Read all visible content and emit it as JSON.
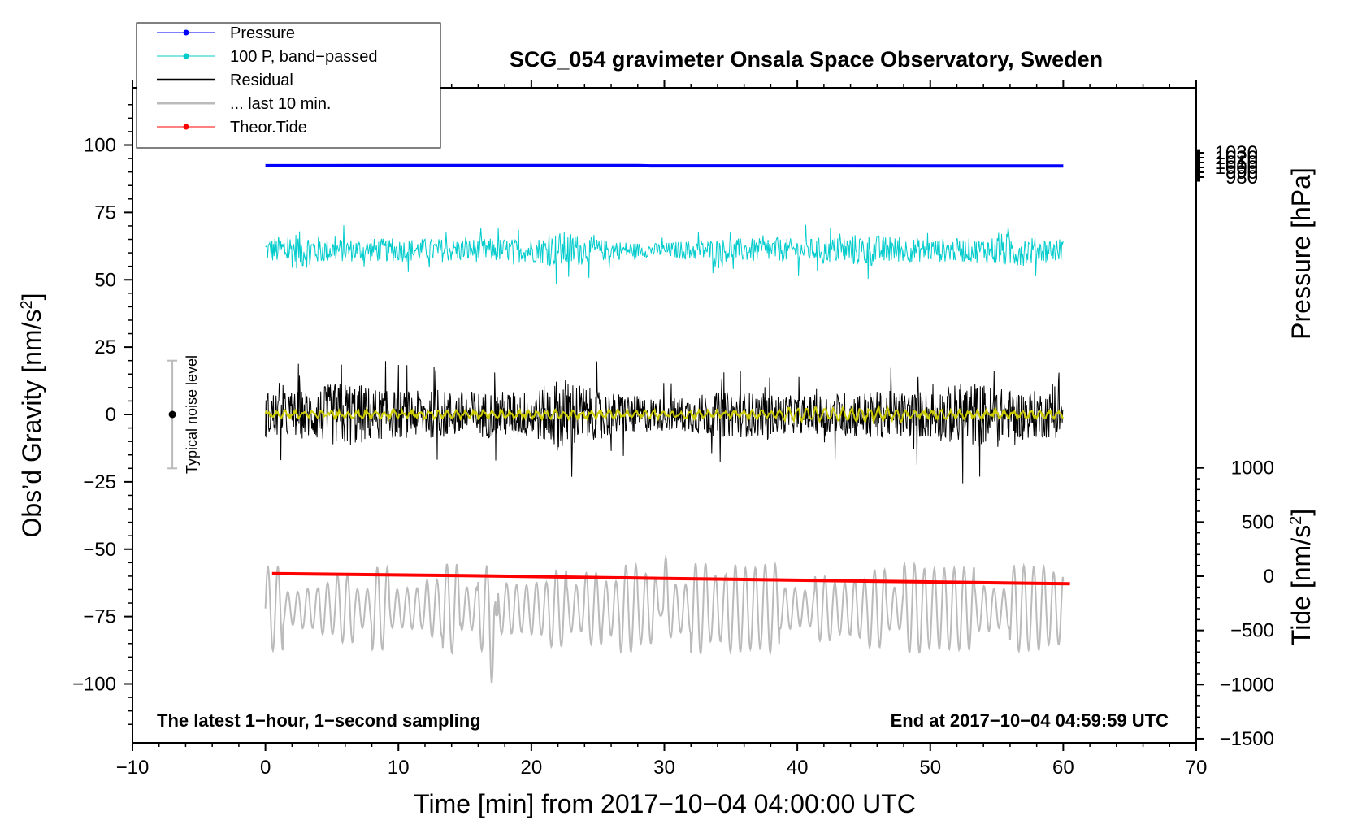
{
  "chart_data": {
    "type": "line",
    "title": "SCG_054 gravimeter Onsala Space Observatory, Sweden",
    "xlabel": "Time [min] from 2017−10−04 04:00:00 UTC",
    "ylabel_left_main": "Obs’d Gravity [nm/s",
    "ylabel_left_sup": "2",
    "ylabel_left_end": "]",
    "ylabel_right_top": "Pressure [hPa]",
    "ylabel_right_bottom_main": "Tide [nm/s",
    "ylabel_right_bottom_sup": "2",
    "ylabel_right_bottom_end": "]",
    "xlim": [
      -10,
      70
    ],
    "ylim": [
      -120,
      120
    ],
    "pressure_axis": {
      "ticks": [
        980,
        990,
        1000,
        1010,
        1020,
        1030
      ],
      "labels": [
        "980",
        "990",
        "1000",
        "1010",
        "1020",
        "1030"
      ]
    },
    "tide_axis": {
      "ticks": [
        -1500,
        -1000,
        -500,
        0,
        500,
        1000
      ],
      "labels": [
        "−1500",
        "−1000",
        "−500",
        "0",
        "500",
        "1000"
      ]
    },
    "x_ticks": [
      -10,
      0,
      10,
      20,
      30,
      40,
      50,
      60,
      70
    ],
    "x_tick_labels": [
      "−10",
      "0",
      "10",
      "20",
      "30",
      "40",
      "50",
      "60",
      "70"
    ],
    "y_ticks": [
      -100,
      -75,
      -50,
      -25,
      0,
      25,
      50,
      75,
      100
    ],
    "y_tick_labels": [
      "−100",
      "−75",
      "−50",
      "−25",
      "0",
      "25",
      "50",
      "75",
      "100"
    ],
    "legend": [
      {
        "label": "Pressure",
        "color": "#0000ff",
        "marker": true
      },
      {
        "label": "100 P, band−passed",
        "color": "#00cccc",
        "marker": true
      },
      {
        "label": "Residual",
        "color": "#000000",
        "marker": false
      },
      {
        "label": "... last 10 min.",
        "color": "#bbbbbb",
        "marker": false
      },
      {
        "label": "Theor.Tide",
        "color": "#ff0000",
        "marker": true
      }
    ],
    "series": [
      {
        "name": "Pressure",
        "color": "#0000ff",
        "axis": "pressure",
        "x": [
          0,
          10,
          20,
          28,
          29,
          40,
          50,
          60
        ],
        "values": [
          1003.5,
          1003.7,
          1003.6,
          1003.6,
          1003.2,
          1003.1,
          1003.0,
          1002.8
        ]
      },
      {
        "name": "100 P, band−passed",
        "color": "#00cccc",
        "axis": "gravity",
        "center": 61,
        "amplitude": 8,
        "x_range": [
          0,
          60
        ]
      },
      {
        "name": "Residual",
        "color": "#000000",
        "axis": "gravity",
        "center": 0,
        "amplitude": 16,
        "x_range": [
          0,
          60
        ]
      },
      {
        "name": "Residual smoothed",
        "color": "#cccc00",
        "axis": "gravity",
        "center": 0,
        "amplitude": 1.5,
        "x_range": [
          0,
          60
        ]
      },
      {
        "name": "... last 10 min.",
        "color": "#bbbbbb",
        "axis": "gravity",
        "center": -72,
        "amplitude": 12,
        "x_range": [
          0,
          60
        ]
      },
      {
        "name": "Theor.Tide",
        "color": "#ff0000",
        "axis": "tide",
        "x": [
          0.5,
          15,
          30,
          45,
          60.5
        ],
        "values": [
          25,
          5,
          -20,
          -45,
          -70
        ]
      }
    ],
    "noise_bar": {
      "label": "Typical noise level",
      "x": -7,
      "center": 0,
      "half_range": 20
    },
    "annotations": {
      "left": "The latest 1−hour, 1−second sampling",
      "right": "End at 2017−10−04 04:59:59 UTC"
    }
  }
}
